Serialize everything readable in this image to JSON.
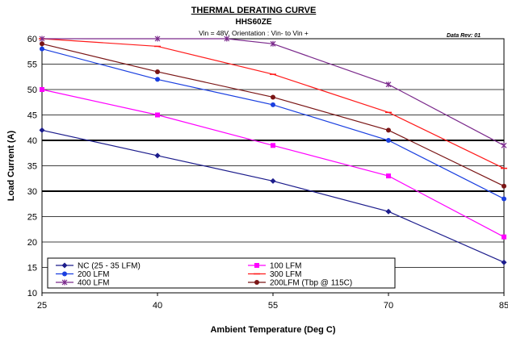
{
  "chart_data": {
    "type": "line",
    "title": "THERMAL DERATING CURVE",
    "subtitle": "HHS60ZE",
    "note": "Vin = 48V, Orientation : Vin- to Vin +",
    "data_rev": "Data Rev:  01",
    "xlabel": "Ambient Temperature (Deg C)",
    "ylabel": "Load Current (A)",
    "xlim": [
      25,
      85
    ],
    "ylim": [
      10,
      60
    ],
    "xticks": [
      25,
      40,
      55,
      70,
      85
    ],
    "yticks": [
      10,
      15,
      20,
      25,
      30,
      35,
      40,
      45,
      50,
      55,
      60
    ],
    "grid": "horizontal",
    "legend_position": "bottom-left",
    "series": [
      {
        "name": "NC (25 - 35 LFM)",
        "color": "#1c1c8c",
        "marker": "diamond",
        "x": [
          25,
          40,
          55,
          70,
          85
        ],
        "y": [
          42,
          37,
          32,
          26,
          16
        ]
      },
      {
        "name": "100 LFM",
        "color": "#ff00ff",
        "marker": "square",
        "x": [
          25,
          40,
          55,
          70,
          85
        ],
        "y": [
          50,
          45,
          39,
          33,
          21
        ]
      },
      {
        "name": "200 LFM",
        "color": "#1a3fe0",
        "marker": "circle",
        "x": [
          25,
          40,
          55,
          70,
          85
        ],
        "y": [
          58,
          52,
          47,
          40,
          28.5
        ]
      },
      {
        "name": "300 LFM",
        "color": "#ff1a1a",
        "marker": "dash",
        "x": [
          25,
          40,
          55,
          70,
          85
        ],
        "y": [
          60,
          58.5,
          53,
          45.5,
          34.5
        ]
      },
      {
        "name": "400 LFM",
        "color": "#7b2a8c",
        "marker": "star",
        "x": [
          25,
          40,
          49,
          55,
          70,
          85
        ],
        "y": [
          60,
          60,
          60,
          59,
          51,
          39
        ]
      },
      {
        "name": "200LFM (Tbp @ 115C)",
        "color": "#7a1515",
        "marker": "circle",
        "x": [
          25,
          40,
          55,
          70,
          85
        ],
        "y": [
          59,
          53.5,
          48.5,
          42,
          31
        ]
      }
    ]
  }
}
